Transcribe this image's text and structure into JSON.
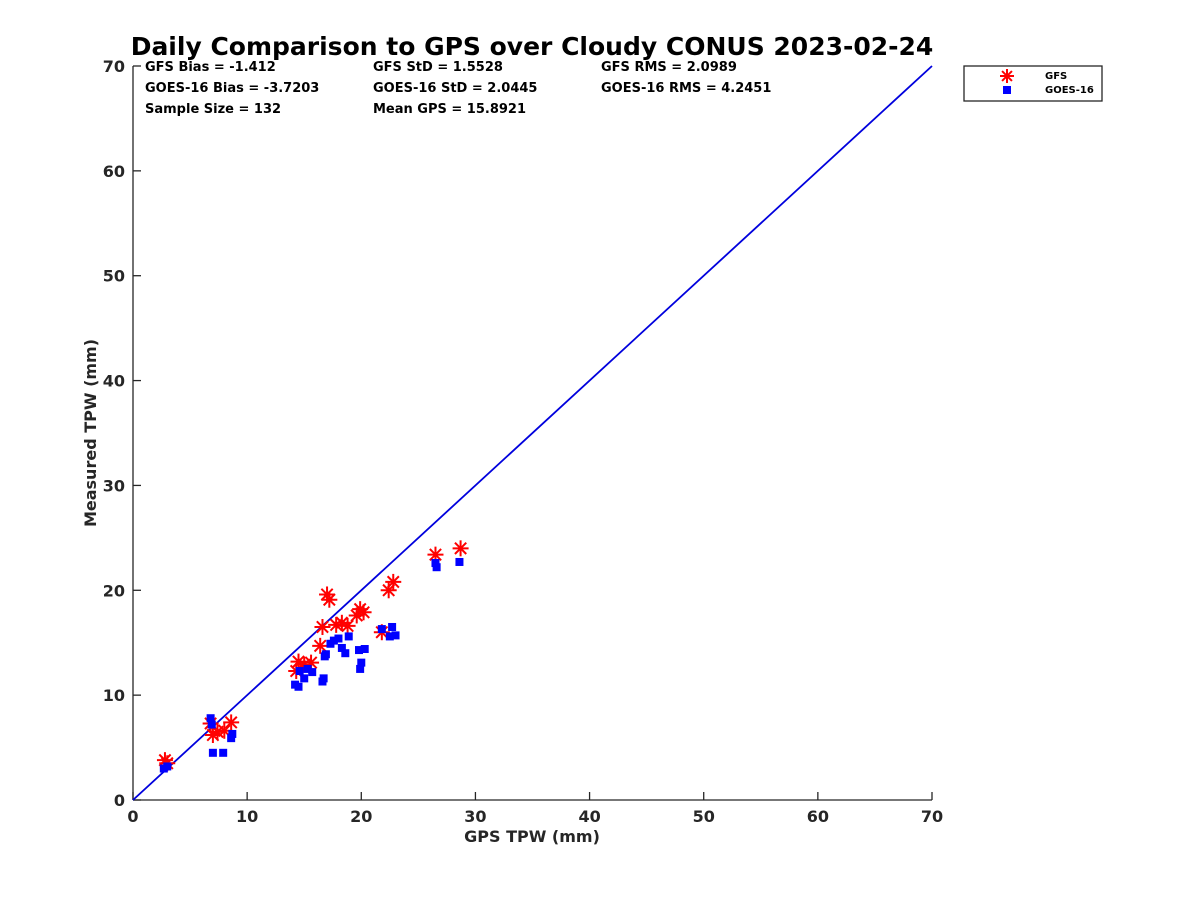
{
  "chart_data": {
    "type": "scatter",
    "title": "Daily Comparison to GPS over Cloudy CONUS 2023-02-24",
    "xlabel": "GPS TPW (mm)",
    "ylabel": "Measured TPW (mm)",
    "xlim": [
      0,
      70
    ],
    "ylim": [
      0,
      70
    ],
    "xticks": [
      0,
      10,
      20,
      30,
      40,
      50,
      60,
      70
    ],
    "yticks": [
      0,
      10,
      20,
      30,
      40,
      50,
      60,
      70
    ],
    "grid": false,
    "legend_position": "outside-top-right",
    "stats": [
      "GFS Bias = -1.412",
      "GFS StD = 1.5528",
      "GFS RMS = 2.0989",
      "GOES-16 Bias = -3.7203",
      "GOES-16 StD = 2.0445",
      "GOES-16 RMS = 4.2451",
      "Sample Size = 132",
      "Mean GPS = 15.8921"
    ],
    "reference_line": {
      "x": [
        0,
        70
      ],
      "y": [
        0,
        70
      ],
      "color": "#0000dd"
    },
    "series": [
      {
        "name": "GFS",
        "marker": "asterisk",
        "color": "#ff0000",
        "points": [
          [
            2.8,
            3.8
          ],
          [
            3.0,
            3.5
          ],
          [
            6.8,
            7.3
          ],
          [
            7.0,
            6.2
          ],
          [
            7.4,
            6.5
          ],
          [
            8.0,
            6.6
          ],
          [
            8.6,
            7.4
          ],
          [
            14.3,
            12.3
          ],
          [
            14.5,
            13.2
          ],
          [
            15.0,
            12.9
          ],
          [
            15.6,
            13.1
          ],
          [
            16.4,
            14.7
          ],
          [
            16.6,
            16.5
          ],
          [
            17.0,
            19.6
          ],
          [
            17.2,
            19.1
          ],
          [
            17.8,
            16.7
          ],
          [
            18.3,
            16.9
          ],
          [
            18.8,
            16.6
          ],
          [
            19.6,
            17.6
          ],
          [
            19.9,
            18.2
          ],
          [
            20.2,
            17.9
          ],
          [
            21.8,
            16.0
          ],
          [
            22.4,
            20.0
          ],
          [
            22.8,
            20.8
          ],
          [
            26.5,
            23.4
          ],
          [
            28.7,
            24.0
          ]
        ]
      },
      {
        "name": "GOES-16",
        "marker": "square",
        "color": "#0000ff",
        "points": [
          [
            2.7,
            3.0
          ],
          [
            3.0,
            3.2
          ],
          [
            6.8,
            7.8
          ],
          [
            6.9,
            7.2
          ],
          [
            7.0,
            4.5
          ],
          [
            7.9,
            4.5
          ],
          [
            8.6,
            5.9
          ],
          [
            8.7,
            6.3
          ],
          [
            14.2,
            11.0
          ],
          [
            14.5,
            10.8
          ],
          [
            14.6,
            12.3
          ],
          [
            15.0,
            11.6
          ],
          [
            15.3,
            12.5
          ],
          [
            15.7,
            12.2
          ],
          [
            16.6,
            11.3
          ],
          [
            16.7,
            11.6
          ],
          [
            16.8,
            13.7
          ],
          [
            16.9,
            13.9
          ],
          [
            17.3,
            14.9
          ],
          [
            17.6,
            15.2
          ],
          [
            18.0,
            15.4
          ],
          [
            18.3,
            14.5
          ],
          [
            18.6,
            14.0
          ],
          [
            18.9,
            15.6
          ],
          [
            19.8,
            14.3
          ],
          [
            19.9,
            12.5
          ],
          [
            20.0,
            13.1
          ],
          [
            20.3,
            14.4
          ],
          [
            21.8,
            16.3
          ],
          [
            22.5,
            15.6
          ],
          [
            22.7,
            16.5
          ],
          [
            23.0,
            15.7
          ],
          [
            26.5,
            22.6
          ],
          [
            26.6,
            22.2
          ],
          [
            28.6,
            22.7
          ]
        ]
      }
    ]
  }
}
